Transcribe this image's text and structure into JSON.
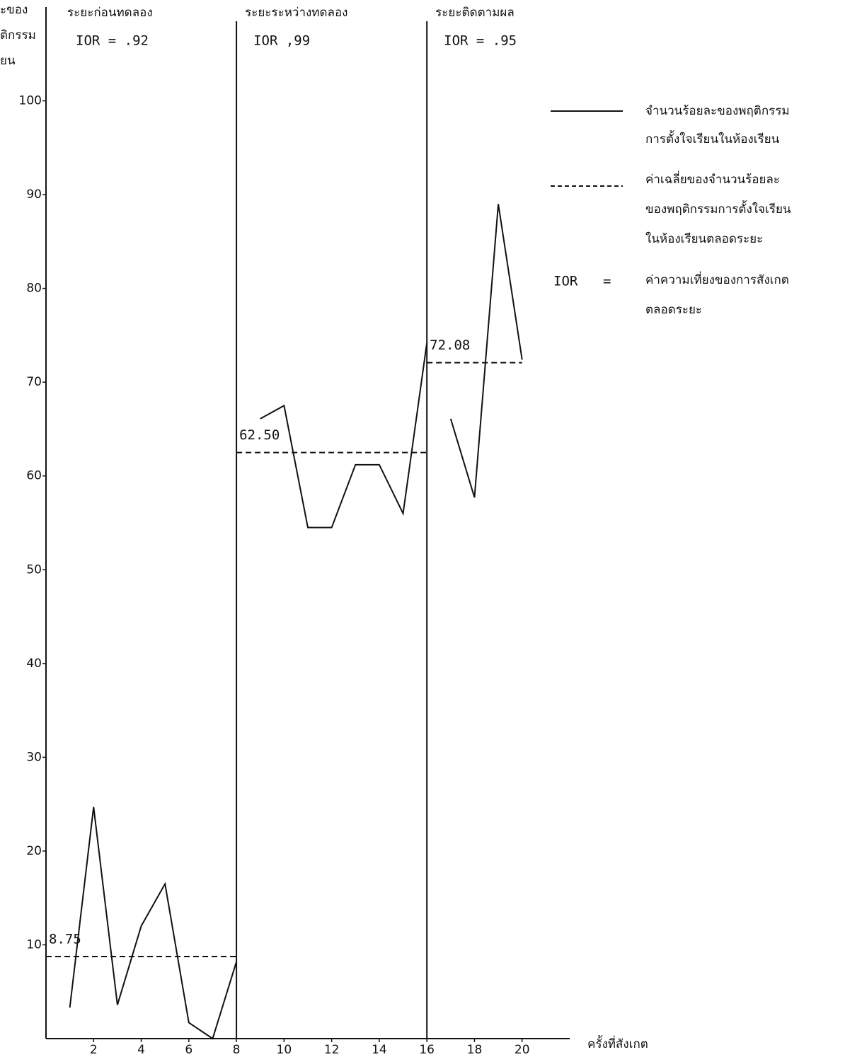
{
  "chart_data": {
    "type": "line",
    "y_axis_label_lines": [
      "ะของ",
      "ติกรรม",
      "ยน"
    ],
    "x_axis_label": "ครั้งที่สังเกต",
    "xlim": [
      0,
      22
    ],
    "ylim": [
      0,
      110
    ],
    "xticks": [
      2,
      4,
      6,
      8,
      10,
      12,
      14,
      16,
      18,
      20
    ],
    "yticks": [
      10,
      20,
      30,
      40,
      50,
      60,
      70,
      80,
      90,
      100
    ],
    "phase_bounds": [
      8,
      16
    ],
    "color": "#111111",
    "phases": [
      {
        "title": "ระยะก่อนทดลอง",
        "ior": "IOR = .92",
        "x": [
          1,
          2,
          3,
          4,
          5,
          6,
          7,
          8
        ],
        "values": [
          3.3,
          24.7,
          3.6,
          12,
          16.5,
          1.7,
          0,
          8.2
        ],
        "mean": {
          "value": 8.75,
          "label": "8.75"
        }
      },
      {
        "title": "ระยะระหว่างทดลอง",
        "ior": "IOR ,99",
        "x": [
          9,
          10,
          11,
          12,
          13,
          14,
          15,
          16
        ],
        "values": [
          66.1,
          67.5,
          54.5,
          54.5,
          61.2,
          61.2,
          56,
          74.2
        ],
        "mean": {
          "value": 62.5,
          "label": "62.50"
        }
      },
      {
        "title": "ระยะติดตามผล",
        "ior": "IOR = .95",
        "x": [
          17,
          18,
          19,
          20
        ],
        "values": [
          66.1,
          57.7,
          89,
          72.4
        ],
        "mean": {
          "value": 72.08,
          "label": "72.08"
        }
      }
    ],
    "legend": {
      "solid": [
        "จำนวนร้อยละของพฤติกรรม",
        "การตั้งใจเรียนในห้องเรียน"
      ],
      "dashed": [
        "ค่าเฉลี่ยของจำนวนร้อยละ",
        "ของพฤติกรรมการตั้งใจเรียน",
        "ในห้องเรียนตลอดระยะ"
      ],
      "ior_key": "IOR",
      "ior_eq": "=",
      "ior": [
        "ค่าความเที่ยงของการสังเกต",
        "ตลอดระยะ"
      ]
    }
  }
}
